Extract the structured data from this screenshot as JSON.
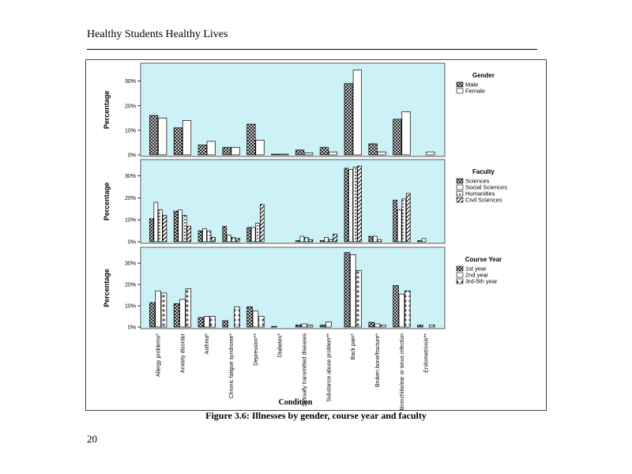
{
  "page": {
    "running_head": "Healthy Students Healthy Lives",
    "caption": "Figure 3.6: Illnesses by gender, course year and faculty",
    "page_number": "20"
  },
  "chart_data": [
    {
      "type": "bar",
      "id": "gender",
      "ylabel": "Percentage",
      "ylim": [
        0,
        36
      ],
      "yticks": [
        "0%",
        "10%",
        "20%",
        "30%"
      ],
      "legend": {
        "title": "Gender",
        "placement": "right"
      },
      "categories": [
        "Allergy problems*",
        "Anxiety disorder",
        "Asthma*",
        "Chronic fatigue syndrome*",
        "Depression**",
        "Diabetes*",
        "Sexually transmitted diseases",
        "Substance abuse problem**",
        "Back pain*",
        "Broken bone/fracture*",
        "Bronchitis/ear or sinus infection",
        "Endometriosis**"
      ],
      "series": [
        {
          "name": "Male",
          "pattern": "cross",
          "values": [
            16,
            11,
            4,
            3,
            12.5,
            0.3,
            2,
            3,
            29,
            4.5,
            14.5,
            0
          ]
        },
        {
          "name": "Female",
          "pattern": "plain",
          "values": [
            15,
            14,
            5.5,
            3,
            6,
            0.3,
            0.8,
            1.2,
            34.5,
            1.2,
            17.5,
            1.2
          ]
        }
      ]
    },
    {
      "type": "bar",
      "id": "faculty",
      "ylabel": "Percentage",
      "ylim": [
        0,
        36
      ],
      "yticks": [
        "0%",
        "10%",
        "20%",
        "30%"
      ],
      "legend": {
        "title": "Faculty",
        "placement": "right"
      },
      "categories": [
        "Allergy problems*",
        "Anxiety disorder",
        "Asthma*",
        "Chronic fatigue syndrome*",
        "Depression**",
        "Diabetes*",
        "Sexually transmitted diseases",
        "Substance abuse problem**",
        "Back pain*",
        "Broken bone/fracture*",
        "Bronchitis/ear or sinus infection",
        "Endometriosis**"
      ],
      "series": [
        {
          "name": "Sciences",
          "pattern": "cross",
          "values": [
            10.5,
            14,
            5,
            7,
            6.5,
            0,
            0.5,
            0.5,
            33.5,
            2.5,
            19,
            0.5
          ]
        },
        {
          "name": "Social Sciences",
          "pattern": "plain",
          "values": [
            18,
            14.5,
            6,
            3,
            6.5,
            0,
            2.5,
            2,
            33,
            2.5,
            14.5,
            1.5
          ]
        },
        {
          "name": "Humanities",
          "pattern": "dots",
          "values": [
            14.5,
            12,
            5,
            2,
            8.5,
            0,
            2,
            1,
            34,
            1,
            19.5,
            0
          ]
        },
        {
          "name": "Civil Sciences",
          "pattern": "diag",
          "values": [
            12,
            7,
            2,
            1.5,
            17,
            0,
            1,
            3.5,
            34.5,
            0,
            22,
            0
          ]
        }
      ]
    },
    {
      "type": "bar",
      "id": "course-year",
      "ylabel": "Percentage",
      "ylim": [
        0,
        36
      ],
      "yticks": [
        "0%",
        "10%",
        "20%",
        "30%"
      ],
      "legend": {
        "title": "Course Year",
        "placement": "right"
      },
      "xlabel": "Condition",
      "categories": [
        "Allergy problems*",
        "Anxiety disorder",
        "Asthma*",
        "Chronic fatigue syndrome*",
        "Depression**",
        "Diabetes*",
        "Sexually transmitted diseases",
        "Substance abuse problem**",
        "Back pain*",
        "Broken bone/fracture*",
        "Bronchitis/ear or sinus infection",
        "Endometriosis**"
      ],
      "series": [
        {
          "name": "1st year",
          "pattern": "cross",
          "values": [
            11.5,
            11,
            4.5,
            3,
            9.5,
            0.3,
            1,
            1,
            35,
            2.2,
            19.5,
            1
          ]
        },
        {
          "name": "2nd year",
          "pattern": "plain",
          "values": [
            17,
            13,
            5,
            0,
            7.5,
            0,
            1.5,
            2.5,
            34,
            1.5,
            15.5,
            0
          ]
        },
        {
          "name": "3rd-5th year",
          "pattern": "stars",
          "values": [
            16,
            18,
            5,
            9.5,
            5,
            0,
            1,
            0,
            26.5,
            1,
            17,
            1
          ]
        }
      ]
    }
  ]
}
